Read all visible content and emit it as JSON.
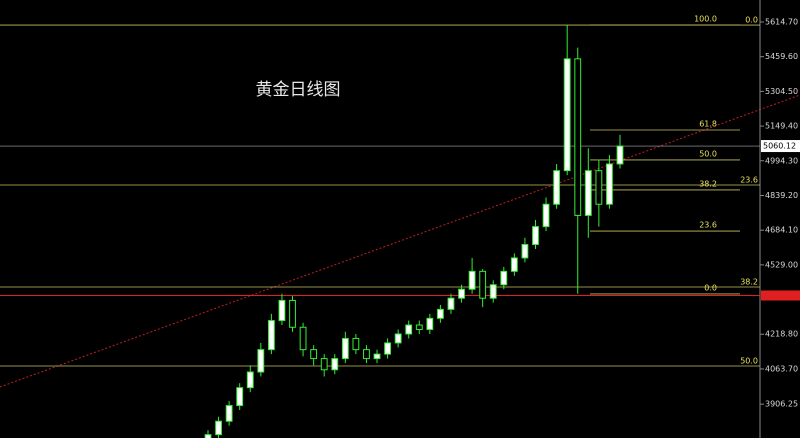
{
  "chart_data": {
    "type": "candlestick",
    "title": "黄金日线图",
    "open": [
      3740,
      3770,
      3830,
      3900,
      3980,
      4050,
      4150,
      4280,
      4370,
      4250,
      4150,
      4110,
      4060,
      4110,
      4200,
      4150,
      4110,
      4130,
      4180,
      4220,
      4260,
      4240,
      4290,
      4330,
      4380,
      4420,
      4500,
      4380,
      4440,
      4500,
      4560,
      4620,
      4700,
      4800,
      4950,
      5450,
      4750,
      4950,
      4800,
      4980
    ],
    "high": [
      3790,
      3850,
      3920,
      4000,
      4080,
      4180,
      4310,
      4400,
      4390,
      4270,
      4170,
      4130,
      4130,
      4230,
      4220,
      4170,
      4150,
      4200,
      4240,
      4280,
      4280,
      4310,
      4350,
      4400,
      4440,
      4560,
      4510,
      4460,
      4520,
      4580,
      4650,
      4730,
      4830,
      4980,
      5600,
      5500,
      5050,
      5000,
      5020,
      5110
    ],
    "low": [
      3720,
      3750,
      3810,
      3880,
      3960,
      4030,
      4130,
      4260,
      4230,
      4120,
      4080,
      4030,
      4040,
      4090,
      4130,
      4090,
      4090,
      4110,
      4160,
      4200,
      4220,
      4220,
      4270,
      4310,
      4360,
      4400,
      4340,
      4360,
      4420,
      4480,
      4540,
      4600,
      4680,
      4780,
      4930,
      4400,
      4650,
      4700,
      4780,
      4960
    ],
    "close": [
      3770,
      3830,
      3900,
      3980,
      4050,
      4150,
      4280,
      4370,
      4250,
      4150,
      4110,
      4060,
      4110,
      4200,
      4150,
      4110,
      4130,
      4180,
      4220,
      4260,
      4240,
      4290,
      4330,
      4380,
      4420,
      4500,
      4380,
      4440,
      4500,
      4560,
      4620,
      4700,
      4800,
      4950,
      5450,
      4750,
      4950,
      4800,
      4980,
      5060
    ],
    "up_color": "#ffffff",
    "down_color": "#000000",
    "edge_color": "#33ee33",
    "ylim": [
      3755,
      5713
    ],
    "yticks": [
      {
        "value": 5614.7,
        "label": "5614.70"
      },
      {
        "value": 5459.6,
        "label": "5459.60"
      },
      {
        "value": 5304.5,
        "label": "5304.50"
      },
      {
        "value": 5149.4,
        "label": "5149.40"
      },
      {
        "value": 4994.3,
        "label": "4994.30"
      },
      {
        "value": 4839.2,
        "label": "4839.20"
      },
      {
        "value": 4684.1,
        "label": "4684.10"
      },
      {
        "value": 4529,
        "label": "4529.00"
      },
      {
        "value": 4218.8,
        "label": "4218.80"
      },
      {
        "value": 4063.7,
        "label": "4063.70"
      },
      {
        "value": 3906.25,
        "label": "3906.25"
      }
    ],
    "last_price": {
      "value": 5060.12,
      "label": "5060.12"
    },
    "red_line": 4392,
    "fib_levels_full": [
      {
        "value": 5601,
        "label": "0.0"
      },
      {
        "value": 4886,
        "label": "23.6"
      },
      {
        "value": 4430,
        "label": "38.2"
      },
      {
        "value": 4077,
        "label": "50.0"
      }
    ],
    "fib_levels_short": [
      {
        "value": 5601,
        "label": "100.0"
      },
      {
        "value": 5132,
        "label": "61.8"
      },
      {
        "value": 4998,
        "label": "50.0"
      },
      {
        "value": 4864,
        "label": "38.2"
      },
      {
        "value": 4680,
        "label": "23.6"
      },
      {
        "value": 4399,
        "label": "0.0"
      }
    ]
  }
}
